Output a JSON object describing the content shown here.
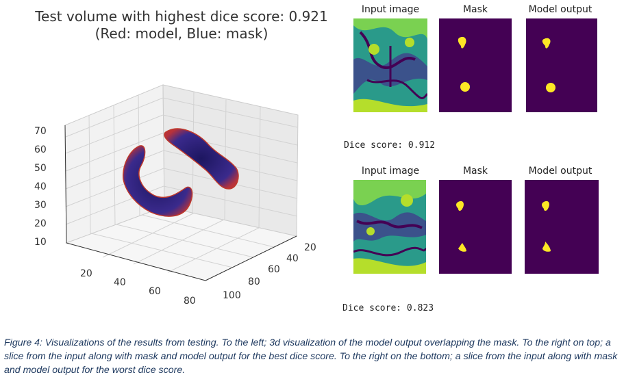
{
  "figure": {
    "title_line1": "Test volume with highest dice score: 0.921",
    "title_line2": "(Red: model, Blue: mask)",
    "z_ticks": [
      "70",
      "60",
      "50",
      "40",
      "30",
      "20",
      "10"
    ],
    "x_ticks": [
      "20",
      "40",
      "60",
      "80"
    ],
    "y_ticks": [
      "100",
      "80",
      "60",
      "40",
      "20"
    ],
    "colors": {
      "model": "#c0392b",
      "mask": "#2a1f7a",
      "viridis_dark": "#440154",
      "viridis_yellow": "#fde725"
    }
  },
  "slices": [
    {
      "labels": [
        "Input image",
        "Mask",
        "Model output"
      ],
      "dice_text": "Dice score: 0.912"
    },
    {
      "labels": [
        "Input image",
        "Mask",
        "Model output"
      ],
      "dice_text": "Dice score: 0.823"
    }
  ],
  "caption": "Figure 4:  Visualizations of the results from testing. To the left; 3d visualization of the model output overlapping the mask. To the right on top; a slice from the input along with mask and model output for the best dice score. To the right on the bottom; a slice from the input along with mask and model output for the worst dice score."
}
